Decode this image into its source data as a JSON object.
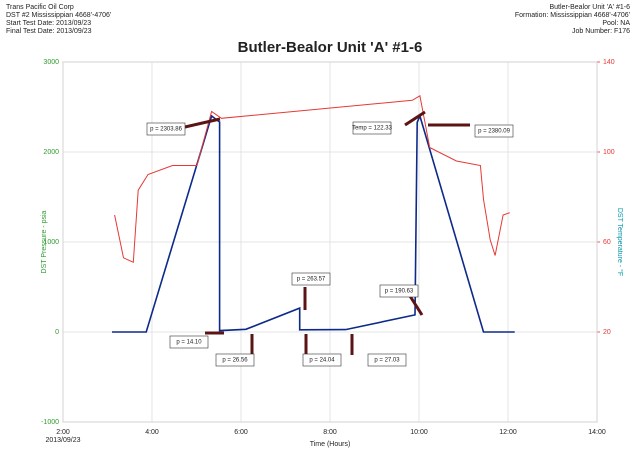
{
  "chart_data": {
    "type": "line",
    "title": "Butler-Bealor Unit 'A' #1-6",
    "header_left": [
      "Trans Pacific Oil Corp",
      "DST #2 Mississippian 4668'-4706'",
      "Start Test Date: 2013/09/23",
      "Final Test Date: 2013/09/23"
    ],
    "header_right": [
      "Butler-Bealor Unit 'A' #1-6",
      "Formation: Mississippian 4668'-4706'",
      "Pool: NA",
      "Job Number: F176"
    ],
    "xlabel": "Time (Hours)",
    "ylabel": "DST Pressure - psia",
    "y2label": "DST Temperature - °F",
    "x_date_label": "2013/09/23",
    "xlim": [
      2,
      14
    ],
    "xticks": [
      {
        "value": 2,
        "label": "2:00"
      },
      {
        "value": 4,
        "label": "4:00"
      },
      {
        "value": 6,
        "label": "6:00"
      },
      {
        "value": 8,
        "label": "8:00"
      },
      {
        "value": 10,
        "label": "10:00"
      },
      {
        "value": 12,
        "label": "12:00"
      },
      {
        "value": 14,
        "label": "14:00"
      }
    ],
    "ylim": [
      -1000,
      3000
    ],
    "yticks": [
      -1000,
      0,
      1000,
      2000,
      3000
    ],
    "y2lim": [
      -20,
      140
    ],
    "y2ticks": [
      20,
      60,
      100,
      140
    ],
    "grid": true,
    "series": [
      {
        "color": "#0d2a8a",
        "axis": "y",
        "x": [
          3.1,
          3.87,
          5.34,
          5.52,
          5.52,
          6.11,
          7.32,
          7.32,
          8.35,
          9.91,
          9.96,
          10.02,
          11.45,
          12.15
        ],
        "values": [
          0,
          0,
          2400,
          2333,
          15,
          30,
          265,
          24,
          27,
          190,
          2330,
          2400,
          0,
          0
        ]
      },
      {
        "color": "#e53935",
        "axis": "y2",
        "x": [
          3.16,
          3.36,
          3.58,
          3.69,
          3.91,
          4.46,
          5.01,
          5.34,
          5.56,
          9.85,
          10.02,
          10.24,
          10.84,
          11.38,
          11.45,
          11.6,
          11.71,
          11.89,
          12.04
        ],
        "values": [
          72,
          53,
          51,
          83,
          90,
          94,
          94,
          118,
          115,
          123,
          125,
          102,
          96,
          94,
          79,
          61,
          54,
          72,
          73
        ]
      }
    ],
    "annotations": [
      "p = 2303.86",
      "p = 14.10",
      "p = 26.56",
      "p = 263.57",
      "p = 24.04",
      "p = 27.03",
      "p = 190.63",
      "Temp = 122.33",
      "p = 2380.09"
    ]
  }
}
